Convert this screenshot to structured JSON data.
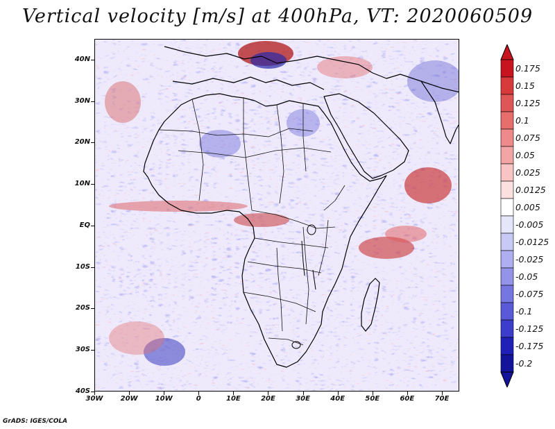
{
  "title": "Vertical velocity [m/s] at 400hPa, VT: 2020060509",
  "map": {
    "region": "Africa",
    "lat_range": [
      -40,
      45
    ],
    "lon_range": [
      -30,
      75
    ],
    "lat_labels": [
      "40N",
      "30N",
      "20N",
      "10N",
      "EQ",
      "10S",
      "20S",
      "30S",
      "40S"
    ],
    "lat_values": [
      40,
      30,
      20,
      10,
      0,
      -10,
      -20,
      -30,
      -40
    ],
    "lon_labels": [
      "30W",
      "20W",
      "10W",
      "0",
      "10E",
      "20E",
      "30E",
      "40E",
      "50E",
      "60E",
      "70E"
    ],
    "lon_values": [
      -30,
      -20,
      -10,
      0,
      10,
      20,
      30,
      40,
      50,
      60,
      70
    ]
  },
  "colorbar": {
    "labels": [
      "0.175",
      "0.15",
      "0.125",
      "0.1",
      "0.075",
      "0.05",
      "0.025",
      "0.0125",
      "0.005",
      "-0.005",
      "-0.0125",
      "-0.025",
      "-0.05",
      "-0.075",
      "-0.1",
      "-0.125",
      "-0.175",
      "-0.2"
    ],
    "colors": [
      "#c8141e",
      "#d73a3a",
      "#e05555",
      "#e86e6e",
      "#ee8a8a",
      "#f3a5a5",
      "#f8c4c4",
      "#fce0e0",
      "#ffffff",
      "#e6e6fb",
      "#c9c9f5",
      "#aeaef0",
      "#9393ea",
      "#7676e0",
      "#5a5ad8",
      "#3d3dcc",
      "#2020b8",
      "#14149a"
    ]
  },
  "footer": "GrADS: IGES/COLA"
}
